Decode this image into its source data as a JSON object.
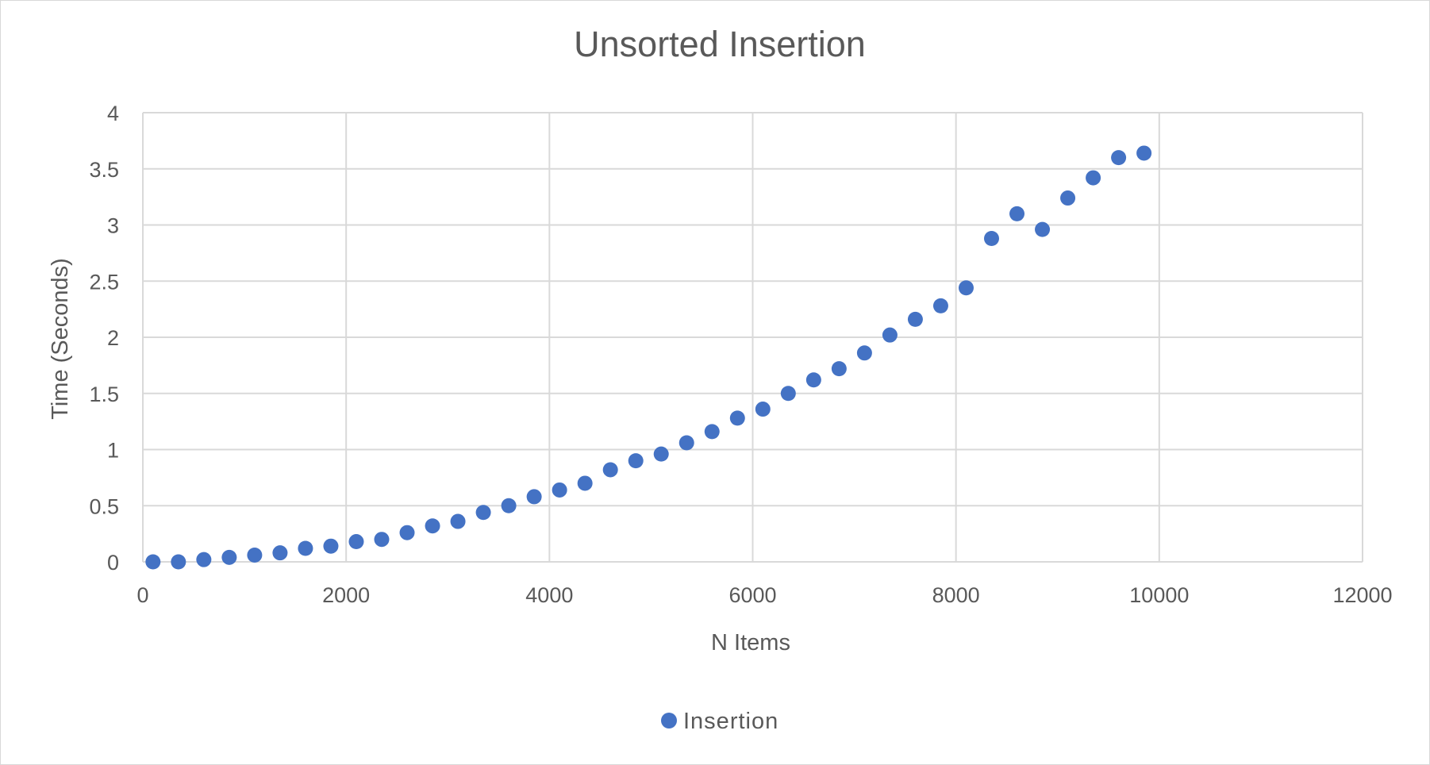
{
  "chart_data": {
    "type": "scatter",
    "title": "Unsorted Insertion",
    "xlabel": "N Items",
    "ylabel": "Time (Seconds)",
    "xlim": [
      0,
      12000
    ],
    "ylim": [
      0,
      4
    ],
    "x_ticks": [
      "0",
      "2000",
      "4000",
      "6000",
      "8000",
      "10000",
      "12000"
    ],
    "y_ticks": [
      "0",
      "0.5",
      "1",
      "1.5",
      "2",
      "2.5",
      "3",
      "3.5",
      "4"
    ],
    "grid": true,
    "legend_position": "bottom",
    "marker_color": "#4472C4",
    "series": [
      {
        "name": "Insertion",
        "points": [
          [
            100,
            0.0
          ],
          [
            350,
            0.0
          ],
          [
            600,
            0.02
          ],
          [
            850,
            0.04
          ],
          [
            1100,
            0.06
          ],
          [
            1350,
            0.08
          ],
          [
            1600,
            0.12
          ],
          [
            1850,
            0.14
          ],
          [
            2100,
            0.18
          ],
          [
            2350,
            0.2
          ],
          [
            2600,
            0.26
          ],
          [
            2850,
            0.32
          ],
          [
            3100,
            0.36
          ],
          [
            3350,
            0.44
          ],
          [
            3600,
            0.5
          ],
          [
            3850,
            0.58
          ],
          [
            4100,
            0.64
          ],
          [
            4350,
            0.7
          ],
          [
            4600,
            0.82
          ],
          [
            4850,
            0.9
          ],
          [
            5100,
            0.96
          ],
          [
            5350,
            1.06
          ],
          [
            5600,
            1.16
          ],
          [
            5850,
            1.28
          ],
          [
            6100,
            1.36
          ],
          [
            6350,
            1.5
          ],
          [
            6600,
            1.62
          ],
          [
            6850,
            1.72
          ],
          [
            7100,
            1.86
          ],
          [
            7350,
            2.02
          ],
          [
            7600,
            2.16
          ],
          [
            7850,
            2.28
          ],
          [
            8100,
            2.44
          ],
          [
            8350,
            2.88
          ],
          [
            8600,
            3.1
          ],
          [
            8850,
            2.96
          ],
          [
            9100,
            3.24
          ],
          [
            9350,
            3.42
          ],
          [
            9600,
            3.6
          ],
          [
            9850,
            3.64
          ]
        ]
      }
    ]
  }
}
